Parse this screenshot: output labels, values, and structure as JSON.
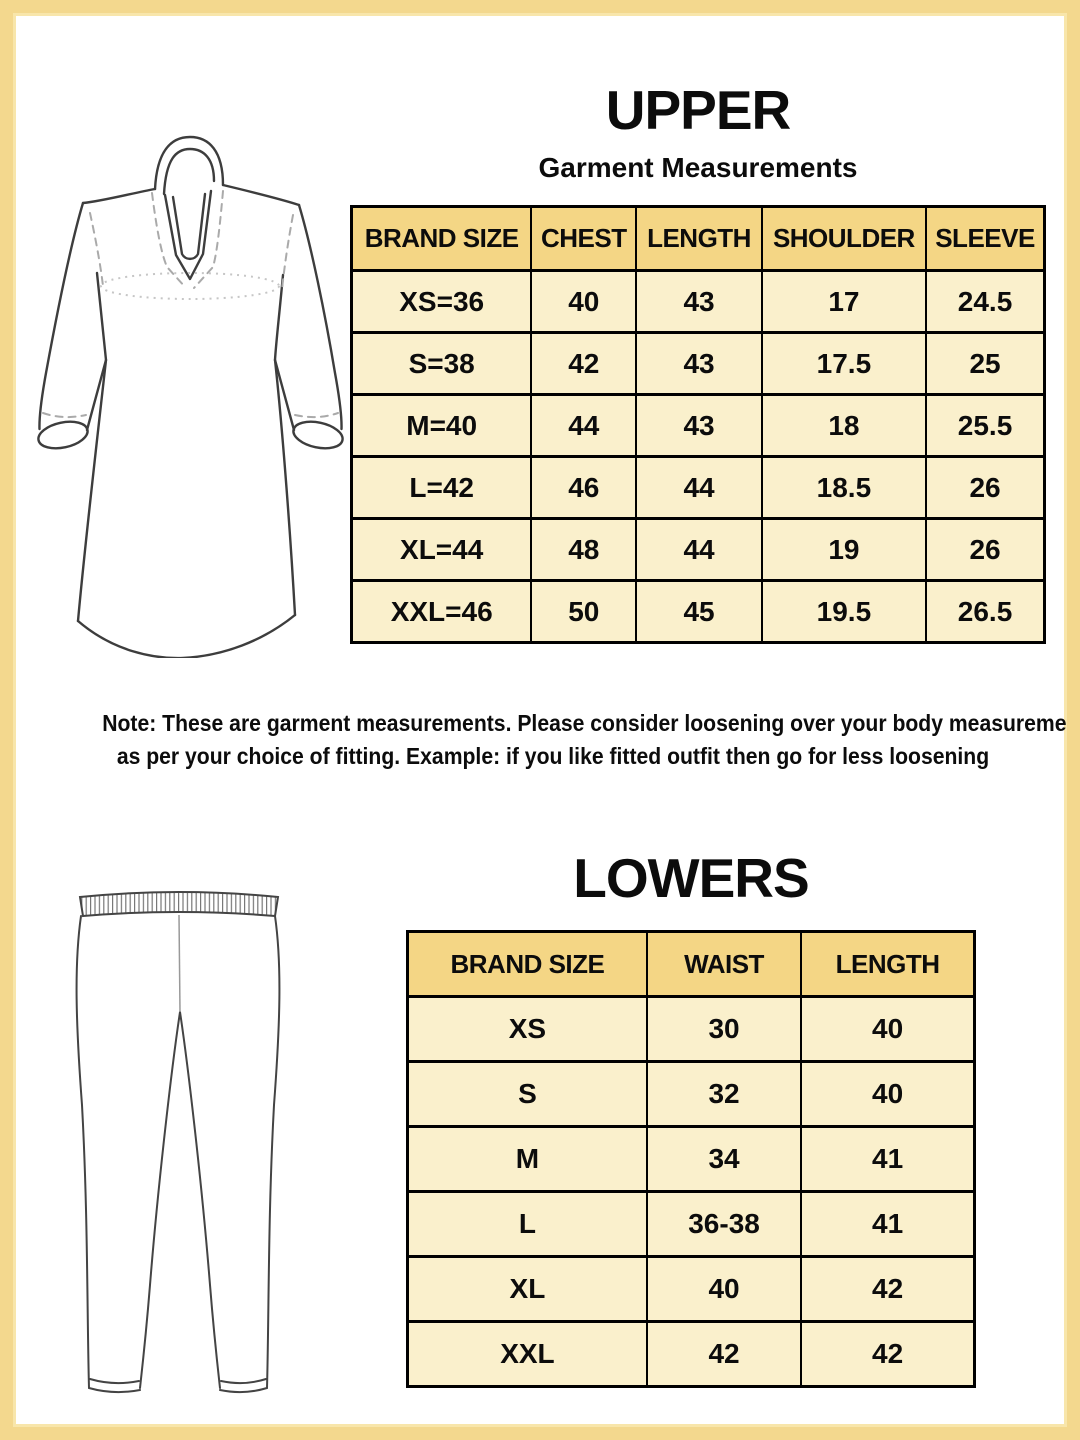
{
  "colors": {
    "border_gold": "#f3d88e",
    "table_header_bg": "#f4d685",
    "table_cell_bg": "#faf0cc",
    "text": "#0c0c0c",
    "table_line": "#000000"
  },
  "upper": {
    "title": "UPPER",
    "subtitle": "Garment Measurements",
    "illustration": "kurta-line-drawing",
    "table": {
      "headers": [
        "BRAND SIZE",
        "CHEST",
        "LENGTH",
        "SHOULDER",
        "SLEEVE"
      ],
      "rows": [
        [
          "XS=36",
          "40",
          "43",
          "17",
          "24.5"
        ],
        [
          "S=38",
          "42",
          "43",
          "17.5",
          "25"
        ],
        [
          "M=40",
          "44",
          "43",
          "18",
          "25.5"
        ],
        [
          "L=42",
          "46",
          "44",
          "18.5",
          "26"
        ],
        [
          "XL=44",
          "48",
          "44",
          "19",
          "26"
        ],
        [
          "XXL=46",
          "50",
          "45",
          "19.5",
          "26.5"
        ]
      ]
    }
  },
  "note": {
    "line1": "Note: These are garment measurements. Please consider loosening over your body measurements",
    "line2": "as per your choice of fitting. Example: if you like fitted outfit then go for less loosening"
  },
  "lowers": {
    "title": "LOWERS",
    "illustration": "leggings-line-drawing",
    "table": {
      "headers": [
        "BRAND SIZE",
        "WAIST",
        "LENGTH"
      ],
      "rows": [
        [
          "XS",
          "30",
          "40"
        ],
        [
          "S",
          "32",
          "40"
        ],
        [
          "M",
          "34",
          "41"
        ],
        [
          "L",
          "36-38",
          "41"
        ],
        [
          "XL",
          "40",
          "42"
        ],
        [
          "XXL",
          "42",
          "42"
        ]
      ]
    }
  }
}
